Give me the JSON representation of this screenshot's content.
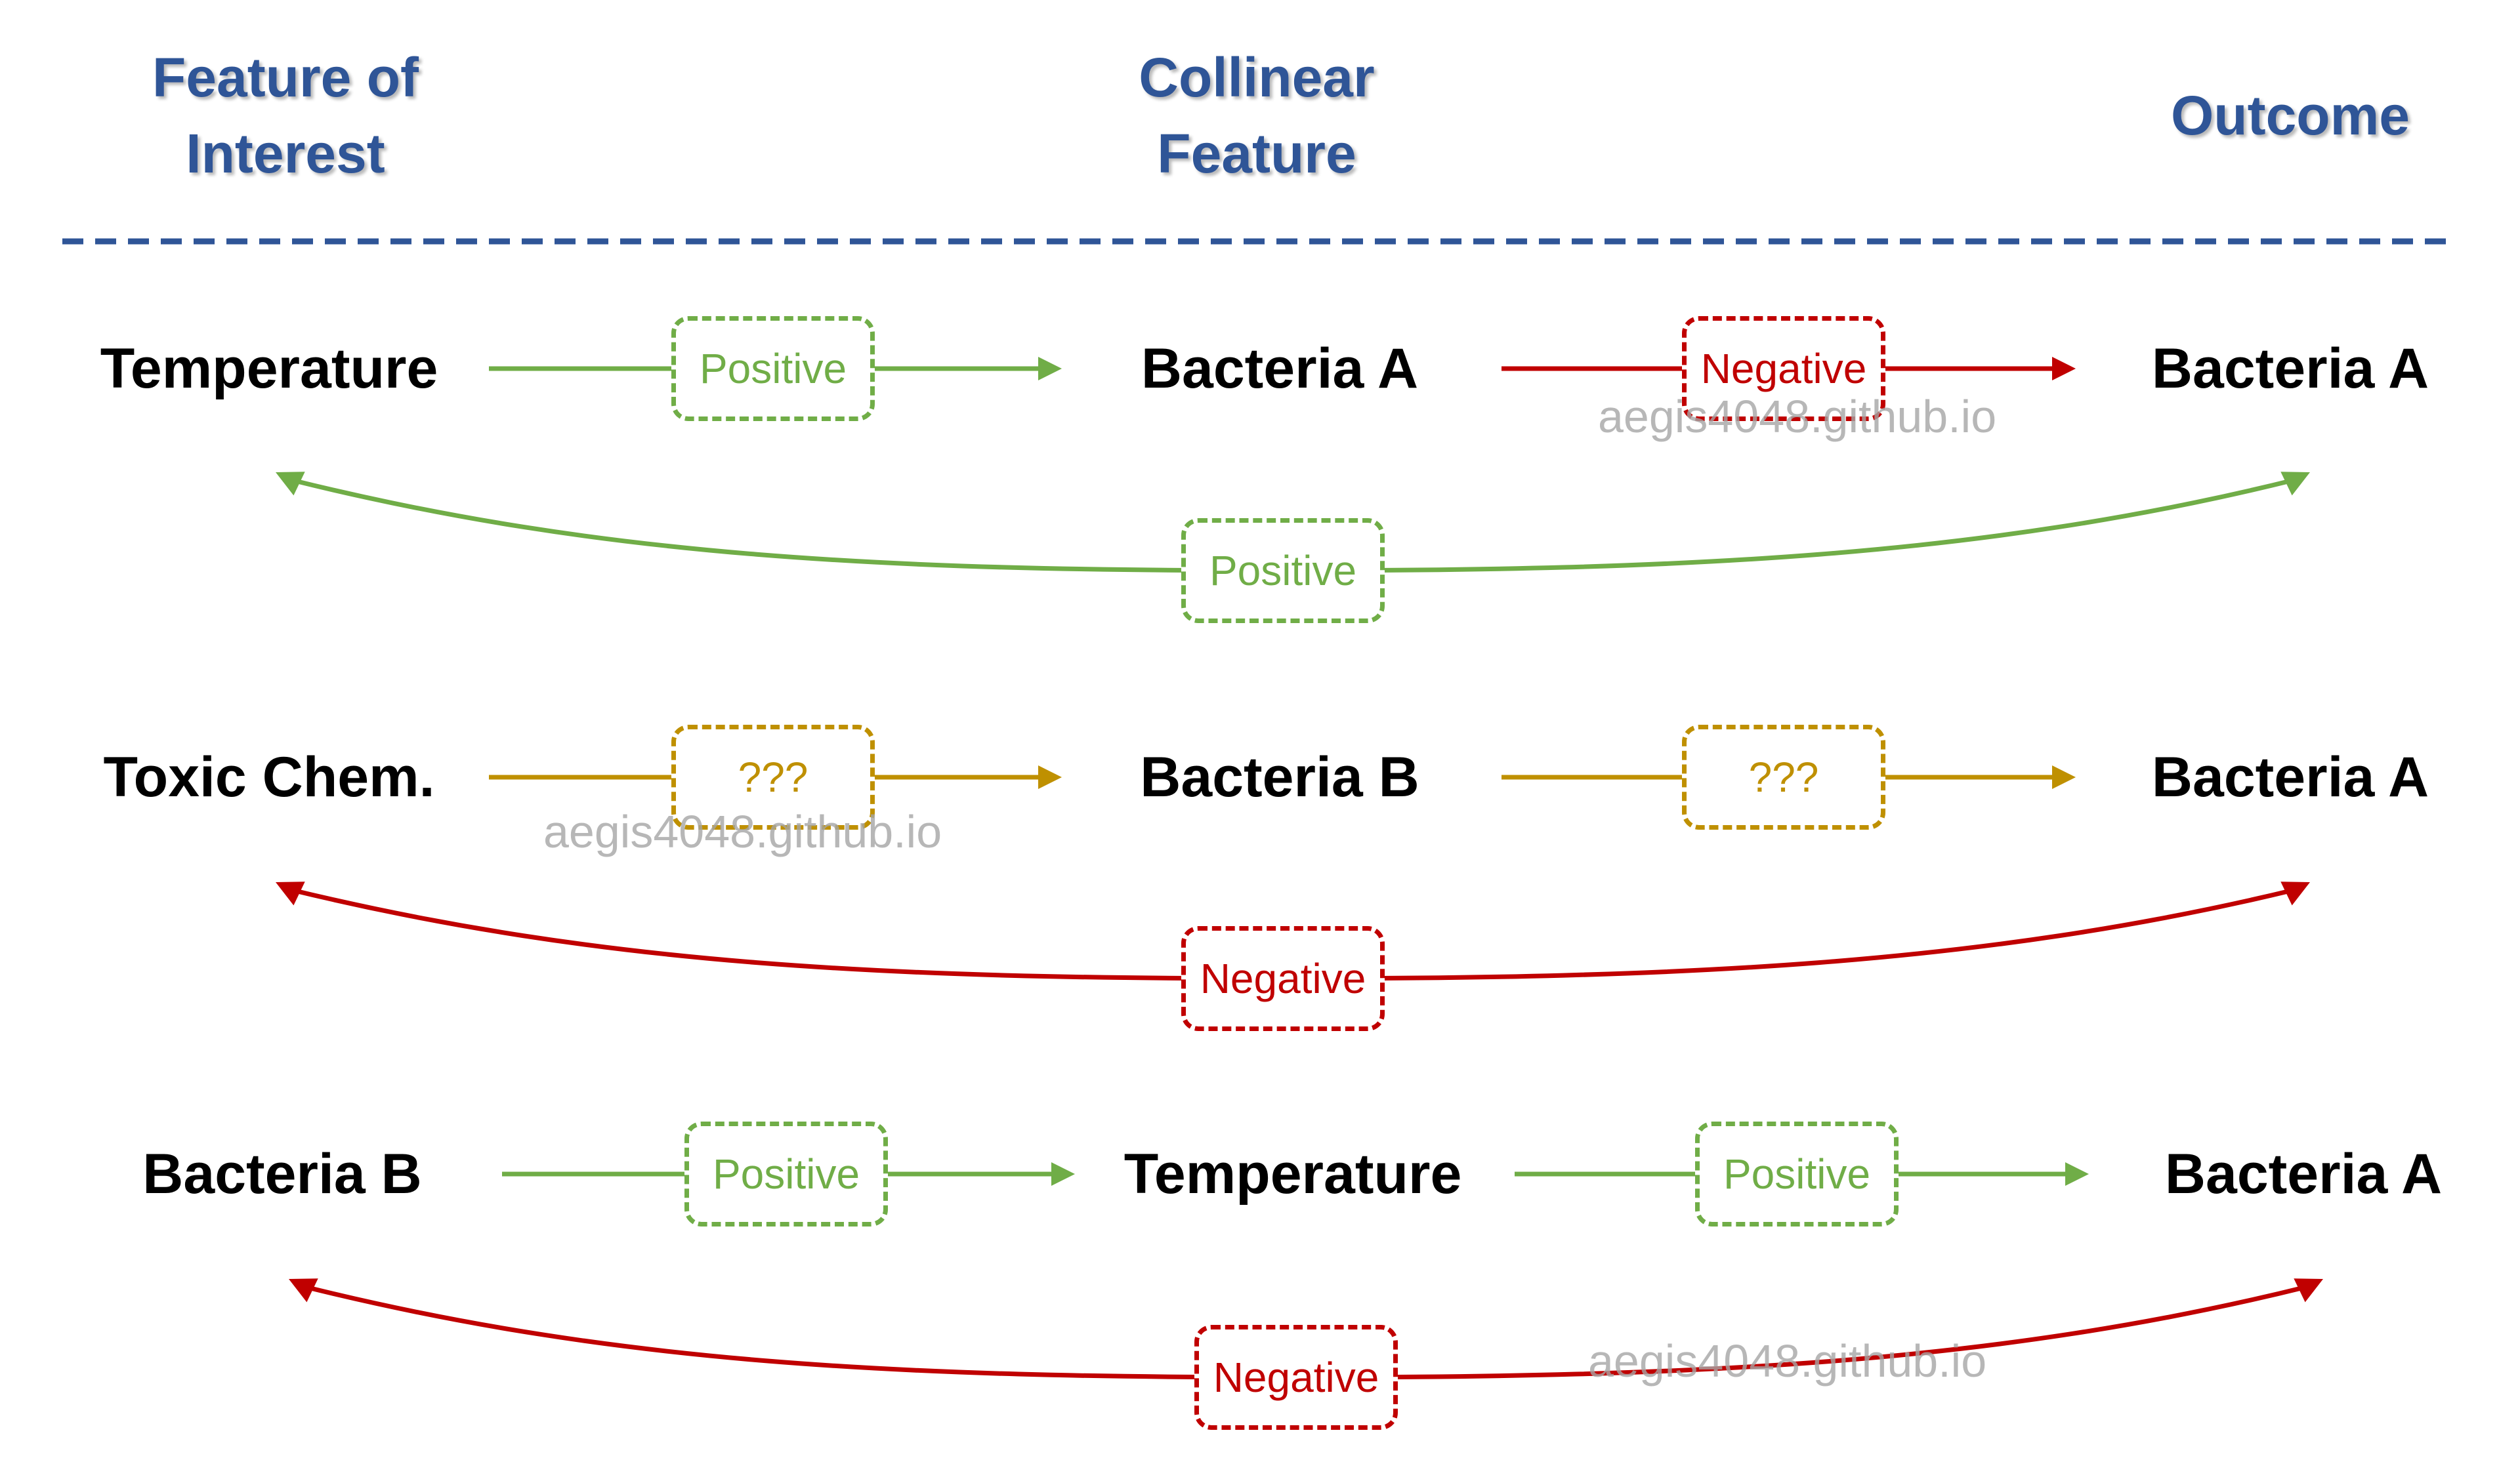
{
  "headers": {
    "feature_of_interest": "Feature of Interest",
    "collinear_feature": "Collinear Feature",
    "outcome": "Outcome"
  },
  "colors": {
    "header": "#2f5597",
    "positive": "#70ad47",
    "negative": "#c00000",
    "unknown": "#bf9000",
    "watermark": "#a6a6a6"
  },
  "rows": [
    {
      "feature": "Temperature",
      "collinear": "Bacteria A",
      "outcome": "Bacteria A",
      "feature_to_collinear": {
        "label": "Positive",
        "color": "#70ad47"
      },
      "collinear_to_outcome": {
        "label": "Negative",
        "color": "#c00000"
      },
      "feature_to_outcome": {
        "label": "Positive",
        "color": "#70ad47"
      }
    },
    {
      "feature": "Toxic Chem.",
      "collinear": "Bacteria B",
      "outcome": "Bacteria A",
      "feature_to_collinear": {
        "label": "???",
        "color": "#bf9000"
      },
      "collinear_to_outcome": {
        "label": "???",
        "color": "#bf9000"
      },
      "feature_to_outcome": {
        "label": "Negative",
        "color": "#c00000"
      }
    },
    {
      "feature": "Bacteria B",
      "collinear": "Temperature",
      "outcome": "Bacteria A",
      "feature_to_collinear": {
        "label": "Positive",
        "color": "#70ad47"
      },
      "collinear_to_outcome": {
        "label": "Positive",
        "color": "#70ad47"
      },
      "feature_to_outcome": {
        "label": "Negative",
        "color": "#c00000"
      }
    }
  ],
  "watermark": "aegis4048.github.io"
}
